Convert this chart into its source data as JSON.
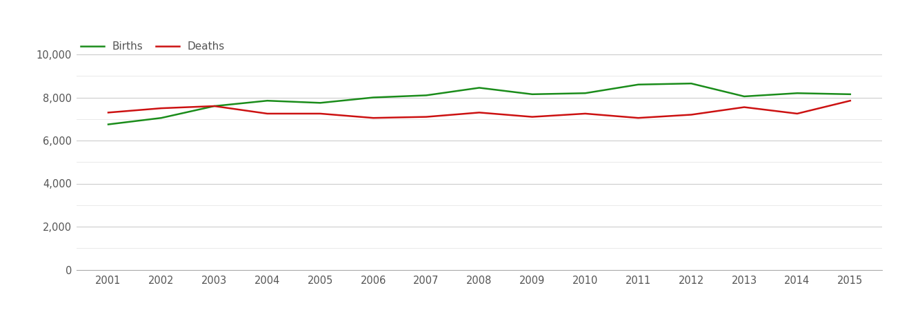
{
  "years": [
    2001,
    2002,
    2003,
    2004,
    2005,
    2006,
    2007,
    2008,
    2009,
    2010,
    2011,
    2012,
    2013,
    2014,
    2015
  ],
  "births": [
    6750,
    7050,
    7600,
    7850,
    7750,
    8000,
    8100,
    8450,
    8150,
    8200,
    8600,
    8650,
    8050,
    8200,
    8150
  ],
  "deaths": [
    7300,
    7500,
    7600,
    7250,
    7250,
    7050,
    7100,
    7300,
    7100,
    7250,
    7050,
    7200,
    7550,
    7250,
    7850
  ],
  "births_color": "#1a8c1a",
  "deaths_color": "#cc1111",
  "line_width": 1.8,
  "legend_labels": [
    "Births",
    "Deaths"
  ],
  "ylim": [
    0,
    10800
  ],
  "yticks": [
    0,
    2000,
    4000,
    6000,
    8000,
    10000
  ],
  "ytick_labels": [
    "0",
    "2,000",
    "4,000",
    "6,000",
    "8,000",
    "10,000"
  ],
  "minor_yticks": [
    1000,
    3000,
    5000,
    7000,
    9000
  ],
  "grid_color": "#cccccc",
  "minor_grid_color": "#e5e5e5",
  "background_color": "#ffffff",
  "legend_fontsize": 11,
  "tick_fontsize": 10.5,
  "tick_color": "#555555"
}
